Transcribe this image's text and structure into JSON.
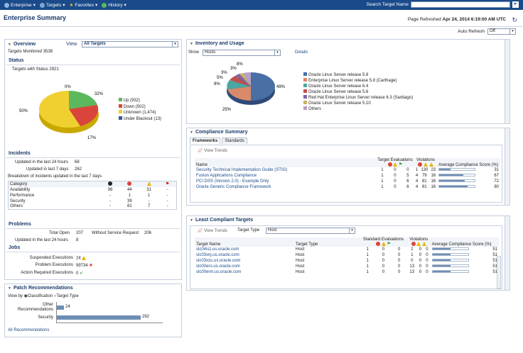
{
  "nav": {
    "enterprise": "Enterprise",
    "targets": "Targets",
    "favorites": "Favorites",
    "history": "History",
    "search_label": "Search Target Name"
  },
  "page": {
    "title": "Enterprise Summary",
    "refreshed_label": "Page Refreshed",
    "refreshed_time": "Apr 24, 2014 6:19:00 AM UTC",
    "auto_refresh_label": "Auto Refresh",
    "auto_refresh_value": "Off"
  },
  "overview": {
    "title": "Overview",
    "view_label": "View",
    "view_value": "All Targets",
    "targets_monitored_label": "Targets Monitored",
    "targets_monitored": "3538",
    "status_title": "Status",
    "targets_with_status_label": "Targets with Status",
    "targets_with_status": "2921",
    "pie": {
      "labels_pct": [
        "0%",
        "32%",
        "17%",
        "50%"
      ],
      "legend": [
        "Up (932)",
        "Down (502)",
        "Unknown (1,474)",
        "Under Blackout (13)"
      ],
      "colors": [
        "#5cb85c",
        "#d9453a",
        "#f0d030",
        "#3a5a8a"
      ],
      "values": [
        932,
        502,
        1474,
        13
      ]
    },
    "incidents_title": "Incidents",
    "updated_24h_label": "Updated in the last 24 hours",
    "updated_24h": "68",
    "updated_7d_label": "Updated in last 7 days",
    "updated_7d": "262",
    "breakdown_label": "Breakdown of incidents updated in the last 7 days",
    "category_header": "Category",
    "categories": [
      {
        "name": "Availability",
        "c1": "98",
        "c2": "44",
        "c3": "31",
        "c4": "-"
      },
      {
        "name": "Performance",
        "c1": "-",
        "c2": "1",
        "c3": "1",
        "c4": "-"
      },
      {
        "name": "Security",
        "c1": "-",
        "c2": "39",
        "c3": "-",
        "c4": "-"
      },
      {
        "name": "Others",
        "c1": "-",
        "c2": "81",
        "c3": "7",
        "c4": "-"
      }
    ],
    "problems_title": "Problems",
    "total_open_label": "Total Open",
    "total_open": "207",
    "without_sr_label": "Without Service Request",
    "without_sr": "206",
    "problems_24h_label": "Updated in the last 24 hours",
    "problems_24h": "8",
    "jobs_title": "Jobs",
    "suspended_label": "Suspended Executions",
    "suspended": "24",
    "problem_exec_label": "Problem Executions",
    "problem_exec": "99734",
    "action_req_label": "Action Required Executions",
    "action_req": "0"
  },
  "patch": {
    "title": "Patch Recommendations",
    "view_by_label": "View by",
    "opt1": "Classification",
    "opt2": "Target Type",
    "other_label_1": "Other",
    "other_label_2": "Recommendations",
    "other_value": "24",
    "security_label": "Security",
    "security_value": "292",
    "all_link": "All Recommendations"
  },
  "inventory": {
    "title": "Inventory and Usage",
    "show_label": "Show",
    "show_value": "Hosts",
    "details_link": "Details",
    "pie_labels": [
      "8%",
      "3%",
      "3%",
      "5%",
      "9%",
      "49%",
      "25%"
    ],
    "legend": [
      "Oracle Linux Server release 5.8",
      "Enterprise Linux Server release 5.8 (Carthage)",
      "Oracle Linux Server release 6.4",
      "Oracle Linux Server release 5.6",
      "Red Hat Enterprise Linux Server release 6.3 (Santiago)",
      "Oracle Linux Server release 5.10",
      "Others"
    ],
    "colors": [
      "#4a6fa5",
      "#d98a6a",
      "#4aa8a0",
      "#c0504d",
      "#8064a2",
      "#c8b560",
      "#b8a0c8"
    ],
    "values": [
      49,
      25,
      9,
      5,
      3,
      3,
      8
    ]
  },
  "compliance": {
    "title": "Compliance Summary",
    "tab1": "Frameworks",
    "tab2": "Standards",
    "view_trends": "View Trends",
    "col_name": "Name",
    "col_eval": "Target Evaluations",
    "col_viol": "Violations",
    "col_score": "Average Compliance Score (%)",
    "rows": [
      {
        "name": "Security Technical Implementation Guide (STIG)",
        "e1": "1",
        "e2": "0",
        "e3": "0",
        "v1": "1",
        "v2": "130",
        "v3": "23",
        "score": "31"
      },
      {
        "name": "Fusion Applications Compliance",
        "e1": "1",
        "e2": "0",
        "e3": "5",
        "v1": "4",
        "v2": "79",
        "v3": "16",
        "score": "67"
      },
      {
        "name": "PCI DSS (Version 2.0) - Example Only",
        "e1": "1",
        "e2": "0",
        "e3": "6",
        "v1": "4",
        "v2": "81",
        "v3": "16",
        "score": "72"
      },
      {
        "name": "Oracle Generic Compliance Framework",
        "e1": "1",
        "e2": "0",
        "e3": "6",
        "v1": "4",
        "v2": "81",
        "v3": "16",
        "score": "80"
      }
    ]
  },
  "least": {
    "title": "Least Compliant Targets",
    "view_trends": "View Trends",
    "target_type_label": "Target Type",
    "target_type_value": "Host",
    "col_name": "Target Name",
    "col_type": "Target Type",
    "col_eval": "Standard Evaluations",
    "col_viol": "Violations",
    "col_score": "Average Compliance Score (%)",
    "rows": [
      {
        "name": "slc04isz.us.oracle.com",
        "type": "Host",
        "e1": "1",
        "e2": "0",
        "e3": "0",
        "v1": "2",
        "v2": "0",
        "v3": "0",
        "score": "51"
      },
      {
        "name": "slc03vnj.us.oracle.com",
        "type": "Host",
        "e1": "1",
        "e2": "0",
        "e3": "0",
        "v1": "1",
        "v2": "0",
        "v3": "0",
        "score": "51"
      },
      {
        "name": "slc03xzu.us.oracle.com",
        "type": "Host",
        "e1": "1",
        "e2": "0",
        "e3": "0",
        "v1": "0",
        "v2": "0",
        "v3": "0",
        "score": "51"
      },
      {
        "name": "slc00ero.us.oracle.com",
        "type": "Host",
        "e1": "1",
        "e2": "0",
        "e3": "0",
        "v1": "13",
        "v2": "0",
        "v3": "0",
        "score": "51"
      },
      {
        "name": "slc00erm.us.oracle.com",
        "type": "Host",
        "e1": "1",
        "e2": "0",
        "e3": "0",
        "v1": "13",
        "v2": "0",
        "v3": "0",
        "score": "51"
      }
    ]
  }
}
